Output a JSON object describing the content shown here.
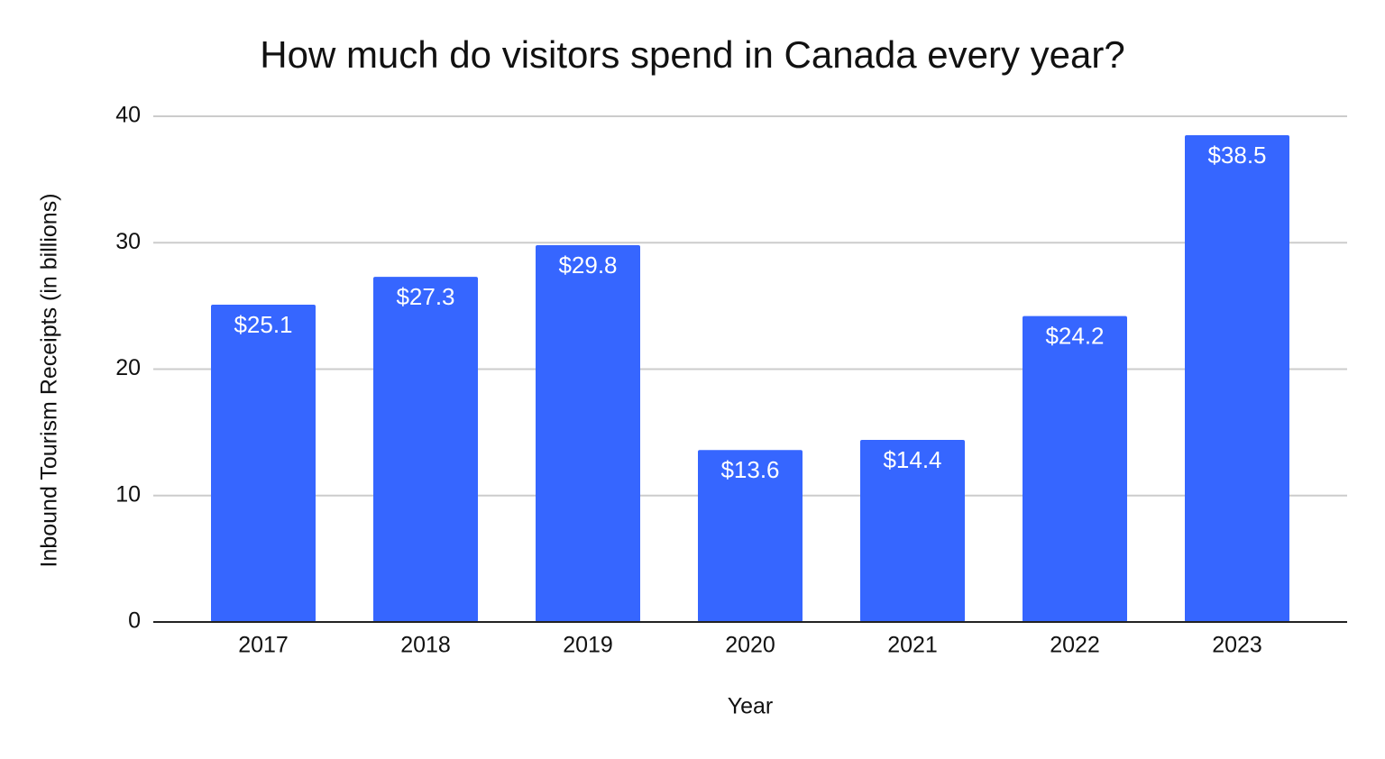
{
  "chart_data": {
    "type": "bar",
    "title": "How much do visitors spend in Canada every year?",
    "x_label": "Year",
    "y_label": "Inbound Tourism Receipts (in billions)",
    "categories": [
      "2017",
      "2018",
      "2019",
      "2020",
      "2021",
      "2022",
      "2023"
    ],
    "values": [
      25.1,
      27.3,
      29.8,
      13.6,
      14.4,
      24.2,
      38.5
    ],
    "value_labels": [
      "$25.1",
      "$27.3",
      "$29.8",
      "$13.6",
      "$14.4",
      "$24.2",
      "$38.5"
    ],
    "color": "#3666ff",
    "ylim": [
      0,
      40
    ],
    "yticks": [
      0,
      10,
      20,
      30,
      40
    ],
    "grid": true
  }
}
